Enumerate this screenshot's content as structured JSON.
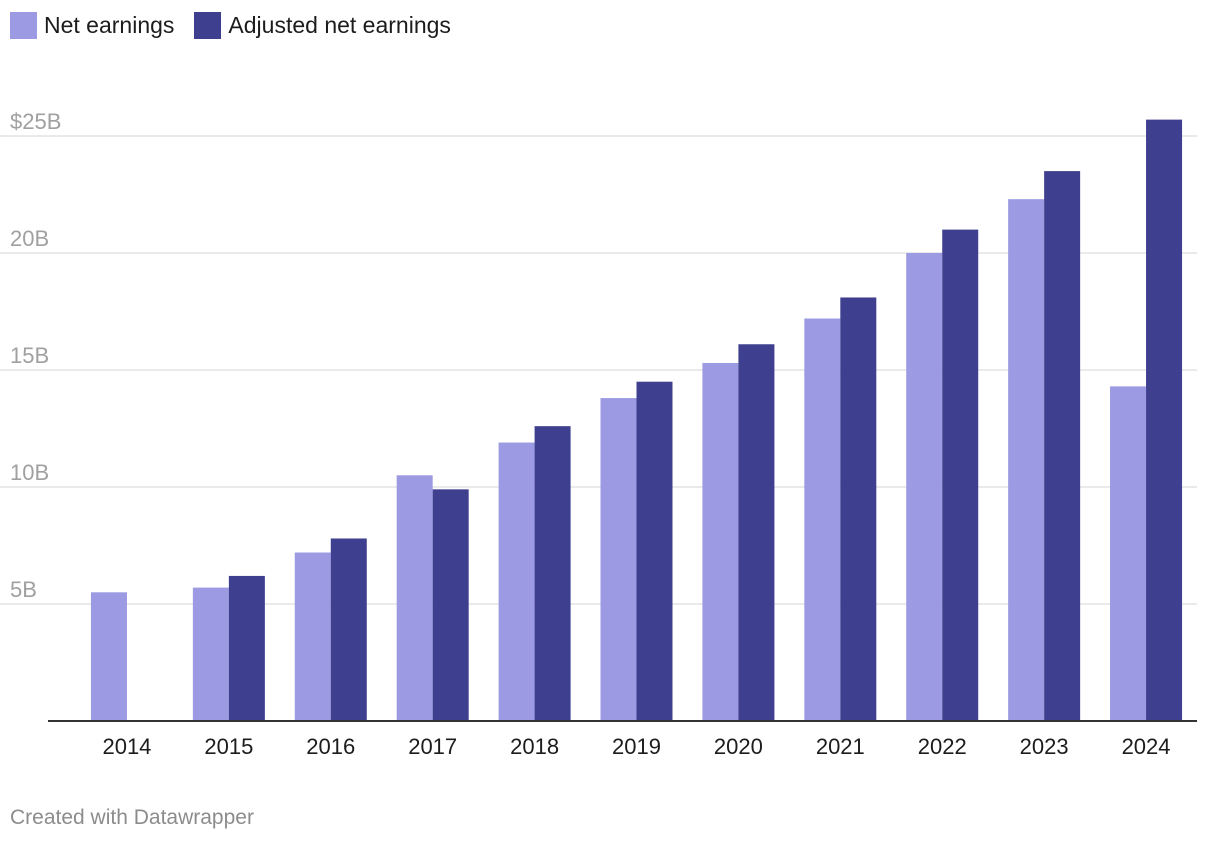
{
  "chart_data": {
    "type": "bar",
    "title": "",
    "xlabel": "",
    "ylabel": "",
    "categories": [
      "2014",
      "2015",
      "2016",
      "2017",
      "2018",
      "2019",
      "2020",
      "2021",
      "2022",
      "2023",
      "2024"
    ],
    "series": [
      {
        "name": "Net earnings",
        "color": "#9b9ae2",
        "values": [
          5.5,
          5.7,
          7.2,
          10.5,
          11.9,
          13.8,
          15.3,
          17.2,
          20.0,
          22.3,
          14.3
        ]
      },
      {
        "name": "Adjusted net earnings",
        "color": "#3f3f8f",
        "values": [
          null,
          6.2,
          7.8,
          9.9,
          12.6,
          14.5,
          16.1,
          18.1,
          21.0,
          23.5,
          25.7
        ]
      }
    ],
    "ylim": [
      0,
      25
    ],
    "yticks": [
      {
        "value": 5,
        "label": "5B"
      },
      {
        "value": 10,
        "label": "10B"
      },
      {
        "value": 15,
        "label": "15B"
      },
      {
        "value": 20,
        "label": "20B"
      },
      {
        "value": 25,
        "label": "$25B"
      }
    ],
    "grid": true,
    "legend_position": "top-left"
  },
  "legend": {
    "items": [
      {
        "label": "Net earnings",
        "color": "#9b9ae2"
      },
      {
        "label": "Adjusted net earnings",
        "color": "#3f3f8f"
      }
    ]
  },
  "credit": "Created with Datawrapper",
  "colors": {
    "grid": "#e3e3e3",
    "axis": "#333333",
    "tick_text_y": "#a0a0a0",
    "tick_text_x": "#1c1c1c"
  }
}
